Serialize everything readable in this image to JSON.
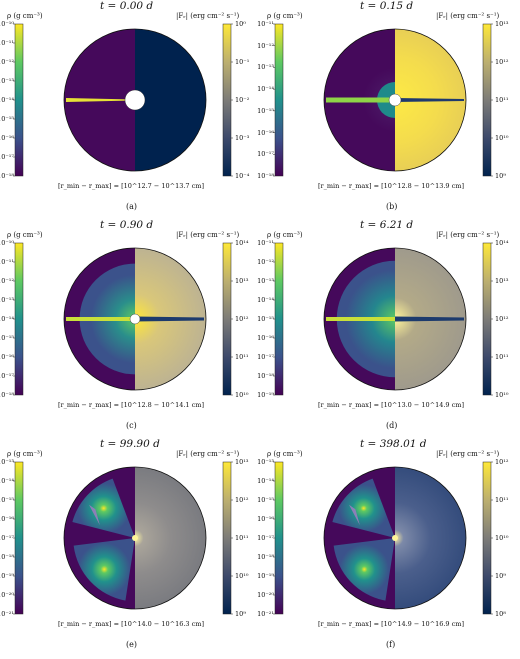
{
  "figure": {
    "rho_label": "ρ (g cm⁻³)",
    "flux_label": "|Fᵣ| (erg cm⁻² s⁻¹)",
    "colors": {
      "viridis": [
        "#440154",
        "#3b528b",
        "#21918c",
        "#5ec962",
        "#fde725"
      ],
      "cividis": [
        "#00224e",
        "#3d4a6b",
        "#7d7c78",
        "#bcaf6f",
        "#fee838"
      ],
      "purple_bg": "#45095b"
    },
    "panels": [
      {
        "id": "a",
        "time": "t = 0.00 d",
        "rho_ticks": [
          "10⁻¹⁰",
          "10⁻¹¹",
          "10⁻¹²",
          "10⁻¹³",
          "10⁻¹⁴",
          "10⁻¹⁵",
          "10⁻¹⁶",
          "10⁻¹⁷",
          "10⁻¹⁸"
        ],
        "flux_ticks": [
          "10⁰",
          "10⁻¹",
          "10⁻²",
          "10⁻³",
          "10⁻⁴"
        ],
        "range": "[r_min − r_max] = [10^12.7 − 10^13.7 cm]",
        "caption": "(a)"
      },
      {
        "id": "b",
        "time": "t = 0.15 d",
        "rho_ticks": [
          "10⁻¹¹",
          "10⁻¹²",
          "10⁻¹³",
          "10⁻¹⁴",
          "10⁻¹⁵",
          "10⁻¹⁶",
          "10⁻¹⁷",
          "10⁻¹⁸"
        ],
        "flux_ticks": [
          "10¹³",
          "10¹²",
          "10¹¹",
          "10¹⁰",
          "10⁹"
        ],
        "range": "[r_min − r_max] = [10^12.8 − 10^13.9 cm]",
        "caption": "(b)"
      },
      {
        "id": "c",
        "time": "t = 0.90 d",
        "rho_ticks": [
          "10⁻¹⁰",
          "10⁻¹¹",
          "10⁻¹²",
          "10⁻¹³",
          "10⁻¹⁴",
          "10⁻¹⁵",
          "10⁻¹⁶",
          "10⁻¹⁷",
          "10⁻¹⁸"
        ],
        "flux_ticks": [
          "10¹⁴",
          "10¹³",
          "10¹²",
          "10¹¹",
          "10¹⁰"
        ],
        "range": "[r_min − r_max] = [10^12.8 − 10^14.1 cm]",
        "caption": "(c)"
      },
      {
        "id": "d",
        "time": "t = 6.21 d",
        "rho_ticks": [
          "10⁻¹¹",
          "10⁻¹²",
          "10⁻¹³",
          "10⁻¹⁴",
          "10⁻¹⁵",
          "10⁻¹⁶",
          "10⁻¹⁷",
          "10⁻¹⁸",
          "10⁻¹⁹"
        ],
        "flux_ticks": [
          "10¹⁴",
          "10¹³",
          "10¹²",
          "10¹¹",
          "10¹⁰"
        ],
        "range": "[r_min − r_max] = [10^13.0 − 10^14.9 cm]",
        "caption": "(d)"
      },
      {
        "id": "e",
        "time": "t = 99.90 d",
        "rho_ticks": [
          "10⁻¹³",
          "10⁻¹⁴",
          "10⁻¹⁵",
          "10⁻¹⁶",
          "10⁻¹⁷",
          "10⁻¹⁸",
          "10⁻¹⁹",
          "10⁻²⁰",
          "10⁻²¹"
        ],
        "flux_ticks": [
          "10¹³",
          "10¹²",
          "10¹¹",
          "10¹⁰",
          "10⁹"
        ],
        "range": "[r_min − r_max] = [10^14.0 − 10^16.3 cm]",
        "caption": "(e)"
      },
      {
        "id": "f",
        "time": "t = 398.01 d",
        "rho_ticks": [
          "10⁻¹³",
          "10⁻¹⁴",
          "10⁻¹⁵",
          "10⁻¹⁶",
          "10⁻¹⁷",
          "10⁻¹⁸",
          "10⁻¹⁹",
          "10⁻²⁰",
          "10⁻²¹"
        ],
        "flux_ticks": [
          "10¹²",
          "10¹¹",
          "10¹⁰",
          "10⁹",
          "10⁸"
        ],
        "range": "[r_min − r_max] = [10^14.9 − 10^16.9 cm]",
        "caption": "(f)"
      }
    ]
  }
}
